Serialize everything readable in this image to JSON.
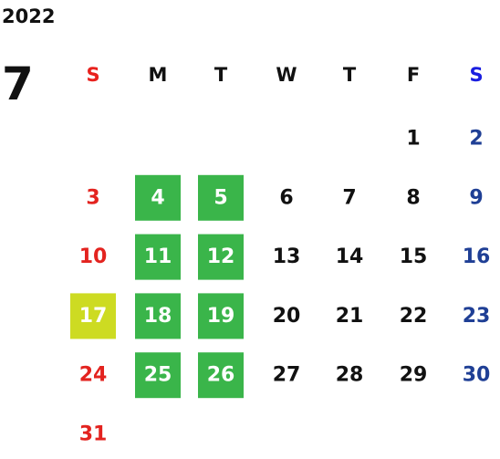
{
  "calendar": {
    "year": "2022",
    "month": "7",
    "weekdays": [
      {
        "label": "S",
        "color": "#e8211d",
        "day_color": "#e3231f"
      },
      {
        "label": "M",
        "color": "#111111",
        "day_color": "#111111"
      },
      {
        "label": "T",
        "color": "#111111",
        "day_color": "#111111"
      },
      {
        "label": "W",
        "color": "#111111",
        "day_color": "#111111"
      },
      {
        "label": "T",
        "color": "#111111",
        "day_color": "#111111"
      },
      {
        "label": "F",
        "color": "#111111",
        "day_color": "#111111"
      },
      {
        "label": "S",
        "color": "#1a1ee0",
        "day_color": "#1f3f95"
      }
    ],
    "weeks": [
      [
        null,
        null,
        null,
        null,
        null,
        {
          "day": 1
        },
        {
          "day": 2
        }
      ],
      [
        {
          "day": 3
        },
        {
          "day": 4,
          "bg": "#3ab54a"
        },
        {
          "day": 5,
          "bg": "#3ab54a"
        },
        {
          "day": 6
        },
        {
          "day": 7
        },
        {
          "day": 8
        },
        {
          "day": 9
        }
      ],
      [
        {
          "day": 10
        },
        {
          "day": 11,
          "bg": "#3ab54a"
        },
        {
          "day": 12,
          "bg": "#3ab54a"
        },
        {
          "day": 13
        },
        {
          "day": 14
        },
        {
          "day": 15
        },
        {
          "day": 16
        }
      ],
      [
        {
          "day": 17,
          "bg": "#cddb22"
        },
        {
          "day": 18,
          "bg": "#3ab54a"
        },
        {
          "day": 19,
          "bg": "#3ab54a"
        },
        {
          "day": 20
        },
        {
          "day": 21
        },
        {
          "day": 22
        },
        {
          "day": 23
        }
      ],
      [
        {
          "day": 24
        },
        {
          "day": 25,
          "bg": "#3ab54a"
        },
        {
          "day": 26,
          "bg": "#3ab54a"
        },
        {
          "day": 27
        },
        {
          "day": 28
        },
        {
          "day": 29
        },
        {
          "day": 30
        }
      ],
      [
        {
          "day": 31
        },
        null,
        null,
        null,
        null,
        null,
        null
      ]
    ]
  }
}
